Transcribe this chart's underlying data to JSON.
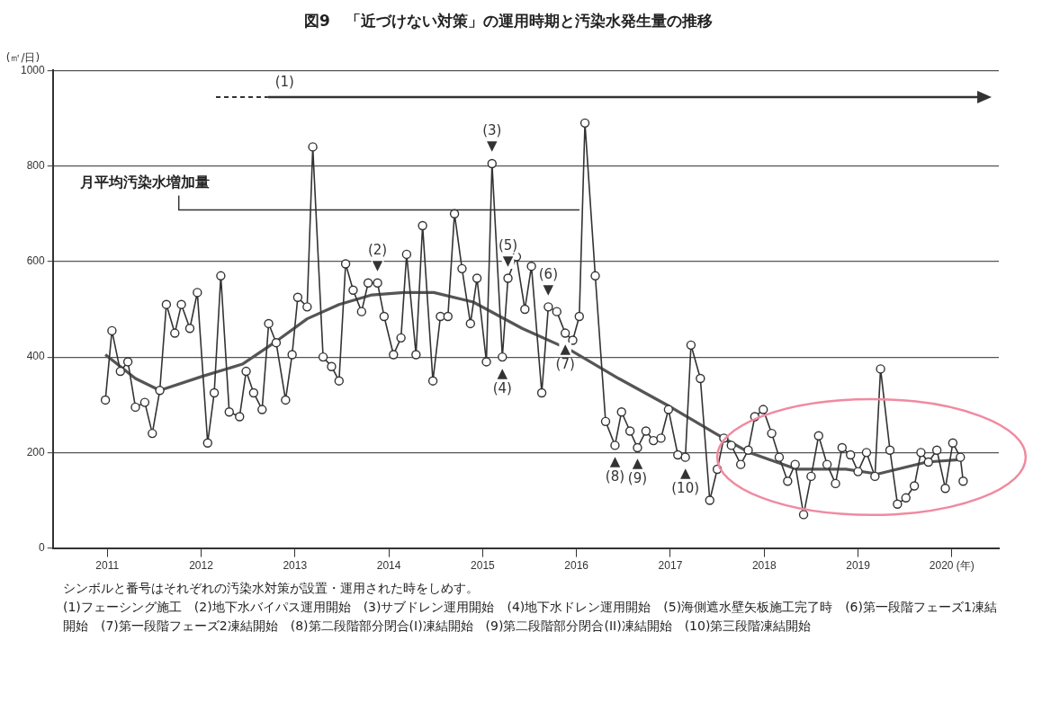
{
  "chart_data": {
    "type": "line",
    "title": "図9　「近づけない対策」の運用時期と汚染水発生量の推移",
    "ylabel": "(㎥/日)",
    "xlim": [
      2010.42,
      2020.5
    ],
    "xticks": [
      2011,
      2012,
      2013,
      2014,
      2015,
      2016,
      2017,
      2018,
      2019,
      {
        "value": 2020,
        "label": "2020 (年)"
      }
    ],
    "ylim": [
      0,
      1000
    ],
    "yticks": [
      0,
      200,
      400,
      600,
      800,
      1000
    ],
    "grid": "y",
    "line_style": "solid",
    "marker": "circle",
    "legend": false,
    "series": [
      {
        "name": "月平均汚染水増加量",
        "color": "#333333",
        "x": [
          2010.98,
          2011.05,
          2011.14,
          2011.22,
          2011.3,
          2011.4,
          2011.48,
          2011.56,
          2011.63,
          2011.72,
          2011.79,
          2011.88,
          2011.96,
          2012.07,
          2012.14,
          2012.21,
          2012.3,
          2012.41,
          2012.48,
          2012.56,
          2012.65,
          2012.72,
          2012.8,
          2012.9,
          2012.97,
          2013.03,
          2013.13,
          2013.19,
          2013.3,
          2013.39,
          2013.47,
          2013.54,
          2013.62,
          2013.71,
          2013.78,
          2013.88,
          2013.95,
          2014.05,
          2014.13,
          2014.19,
          2014.29,
          2014.36,
          2014.47,
          2014.55,
          2014.63,
          2014.7,
          2014.78,
          2014.87,
          2014.94,
          2015.04,
          2015.1,
          2015.21,
          2015.27,
          2015.36,
          2015.45,
          2015.52,
          2015.63,
          2015.7,
          2015.79,
          2015.88,
          2015.96,
          2016.03,
          2016.09,
          2016.2,
          2016.31,
          2016.41,
          2016.48,
          2016.57,
          2016.65,
          2016.74,
          2016.82,
          2016.9,
          2016.98,
          2017.08,
          2017.16,
          2017.22,
          2017.32,
          2017.42,
          2017.5,
          2017.57,
          2017.65,
          2017.75,
          2017.83,
          2017.9,
          2017.99,
          2018.08,
          2018.16,
          2018.25,
          2018.33,
          2018.42,
          2018.5,
          2018.58,
          2018.67,
          2018.76,
          2018.83,
          2018.92,
          2019.0,
          2019.09,
          2019.18,
          2019.24,
          2019.34,
          2019.42,
          2019.51,
          2019.6,
          2019.67,
          2019.75,
          2019.84,
          2019.93,
          2020.01,
          2020.09,
          2020.12
        ],
        "values": [
          310,
          455,
          370,
          390,
          295,
          305,
          240,
          330,
          510,
          450,
          510,
          460,
          535,
          220,
          325,
          570,
          285,
          275,
          370,
          325,
          290,
          470,
          430,
          310,
          405,
          525,
          505,
          840,
          400,
          380,
          350,
          595,
          540,
          495,
          555,
          555,
          485,
          405,
          440,
          615,
          405,
          675,
          350,
          485,
          485,
          700,
          585,
          470,
          565,
          390,
          805,
          400,
          565,
          610,
          500,
          590,
          325,
          505,
          495,
          450,
          435,
          485,
          890,
          570,
          265,
          215,
          285,
          245,
          210,
          245,
          225,
          230,
          290,
          195,
          190,
          425,
          355,
          100,
          165,
          230,
          215,
          175,
          205,
          275,
          290,
          240,
          190,
          140,
          175,
          70,
          150,
          235,
          175,
          135,
          210,
          195,
          160,
          200,
          150,
          375,
          205,
          92,
          105,
          130,
          200,
          180,
          205,
          125,
          220,
          190,
          140
        ]
      },
      {
        "type": "line",
        "marker": "none",
        "color": "#555555",
        "x": [
          2010.98,
          2011.3,
          2011.56,
          2012.02,
          2012.44,
          2012.78,
          2013.13,
          2013.47,
          2013.82,
          2014.16,
          2014.48,
          2014.9,
          2015.42,
          2015.93,
          2016.45,
          2016.96,
          2017.48,
          2017.84,
          2018.35,
          2018.87,
          2019.21,
          2019.73,
          2020.07
        ],
        "values": [
          405,
          355,
          330,
          360,
          385,
          430,
          480,
          510,
          530,
          535,
          535,
          515,
          460,
          415,
          355,
          300,
          240,
          200,
          165,
          165,
          155,
          180,
          185
        ]
      }
    ],
    "annotations": [
      "(1)",
      {
        "text": "(2)\n▼",
        "x": 2013.88,
        "y": 555
      },
      {
        "text": "(3)\n▼",
        "x": 2015.1,
        "y": 805
      },
      {
        "text": "▲\n(4)",
        "x": 2015.21,
        "y": 400
      },
      {
        "text": "(5)\n▼",
        "x": 2015.27,
        "y": 565
      },
      {
        "text": "(6)\n▼",
        "x": 2015.7,
        "y": 505
      },
      {
        "text": "▲\n(7)",
        "x": 2015.88,
        "y": 450
      },
      {
        "text": "▲\n(8)",
        "x": 2016.41,
        "y": 215
      },
      {
        "text": "▲\n(9)",
        "x": 2016.65,
        "y": 210
      },
      {
        "text": "▲\n(10)",
        "x": 2017.16,
        "y": 190
      },
      "シンボルと番号はそれぞれの汚染水対策が設置・運用された時をしめす。",
      "(1)フェーシング施工　(2)地下水バイパス運用開始　(3)サブドレン運用開始　(4)地下水ドレン運用開始　(5)海側遮水壁矢板施工完了時　(6)第一段階フェーズ1凍結開始　(7)第一段階フェーズ2凍結開始　(8)第二段階部分閉合(I)凍結開始　(9)第二段階部分閉合(II)凍結開始　(10)第三段階凍結開始"
    ]
  }
}
